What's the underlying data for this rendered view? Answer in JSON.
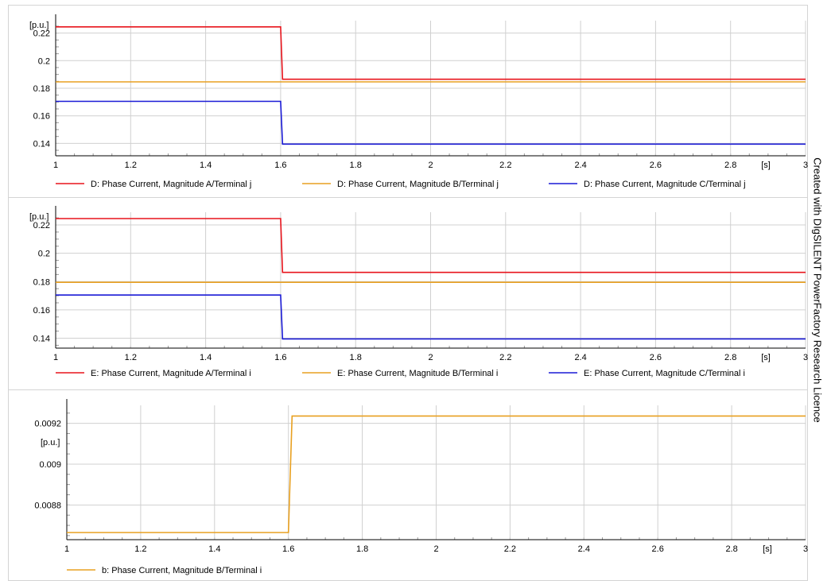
{
  "watermark": "Created with DIgSILENT PowerFactory Research Licence",
  "chart_data": [
    {
      "type": "line",
      "ylabel": "[p.u.]",
      "xunit": "[s]",
      "xlim": [
        1,
        3
      ],
      "ylim": [
        0.131,
        0.229
      ],
      "xticks": [
        1,
        1.2,
        1.4,
        1.6,
        1.8,
        2,
        2.2,
        2.4,
        2.6,
        2.8,
        3
      ],
      "xtick_labels": [
        "1",
        "1.2",
        "1.4",
        "1.6",
        "1.8",
        "2",
        "2.2",
        "2.4",
        "2.6",
        "2.8",
        "3"
      ],
      "yticks": [
        0.14,
        0.16,
        0.18,
        0.2,
        0.22
      ],
      "ytick_labels": [
        "0.14",
        "0.16",
        "0.18",
        "0.2",
        "0.22"
      ],
      "grid": true,
      "legend_position": "bottom",
      "series": [
        {
          "name": "D: Phase Current, Magnitude A/Terminal j",
          "color": "#e8141c",
          "x": [
            1,
            1.6,
            1.605,
            3
          ],
          "y": [
            0.2245,
            0.2245,
            0.1865,
            0.1865
          ]
        },
        {
          "name": "D: Phase Current, Magnitude B/Terminal j",
          "color": "#e8a020",
          "x": [
            1,
            3
          ],
          "y": [
            0.1846,
            0.1846
          ]
        },
        {
          "name": "D: Phase Current, Magnitude C/Terminal j",
          "color": "#1a1ad6",
          "x": [
            1,
            1.6,
            1.605,
            3
          ],
          "y": [
            0.1705,
            0.1705,
            0.1395,
            0.1395
          ]
        }
      ]
    },
    {
      "type": "line",
      "ylabel": "[p.u.]",
      "xunit": "[s]",
      "xlim": [
        1,
        3
      ],
      "ylim": [
        0.133,
        0.229
      ],
      "xticks": [
        1,
        1.2,
        1.4,
        1.6,
        1.8,
        2,
        2.2,
        2.4,
        2.6,
        2.8,
        3
      ],
      "xtick_labels": [
        "1",
        "1.2",
        "1.4",
        "1.6",
        "1.8",
        "2",
        "2.2",
        "2.4",
        "2.6",
        "2.8",
        "3"
      ],
      "yticks": [
        0.14,
        0.16,
        0.18,
        0.2,
        0.22
      ],
      "ytick_labels": [
        "0.14",
        "0.16",
        "0.18",
        "0.2",
        "0.22"
      ],
      "grid": true,
      "legend_position": "bottom",
      "series": [
        {
          "name": "E: Phase Current, Magnitude A/Terminal i",
          "color": "#e8141c",
          "x": [
            1,
            1.6,
            1.605,
            3
          ],
          "y": [
            0.2245,
            0.2245,
            0.1865,
            0.1865
          ]
        },
        {
          "name": "E: Phase Current, Magnitude B/Terminal i",
          "color": "#e8a020",
          "x": [
            1,
            3
          ],
          "y": [
            0.1795,
            0.1795
          ]
        },
        {
          "name": "E: Phase Current, Magnitude C/Terminal i",
          "color": "#1a1ad6",
          "x": [
            1,
            1.6,
            1.605,
            3
          ],
          "y": [
            0.1705,
            0.1705,
            0.1395,
            0.1395
          ]
        }
      ]
    },
    {
      "type": "line",
      "ylabel": "[p.u.]",
      "xunit": "[s]",
      "xlim": [
        1,
        3
      ],
      "ylim": [
        0.00863,
        0.009288
      ],
      "xticks": [
        1,
        1.2,
        1.4,
        1.6,
        1.8,
        2,
        2.2,
        2.4,
        2.6,
        2.8,
        3
      ],
      "xtick_labels": [
        "1",
        "1.2",
        "1.4",
        "1.6",
        "1.8",
        "2",
        "2.2",
        "2.4",
        "2.6",
        "2.8",
        "3"
      ],
      "yticks": [
        0.0088,
        0.009,
        0.0092
      ],
      "ytick_labels": [
        "0.0088",
        "0.009",
        "0.0092"
      ],
      "grid": true,
      "legend_position": "bottom",
      "series": [
        {
          "name": "b: Phase Current, Magnitude B/Terminal i",
          "color": "#e8a020",
          "x": [
            1,
            1.6,
            1.61,
            3
          ],
          "y": [
            0.008665,
            0.008665,
            0.009236,
            0.009236
          ]
        }
      ]
    }
  ]
}
